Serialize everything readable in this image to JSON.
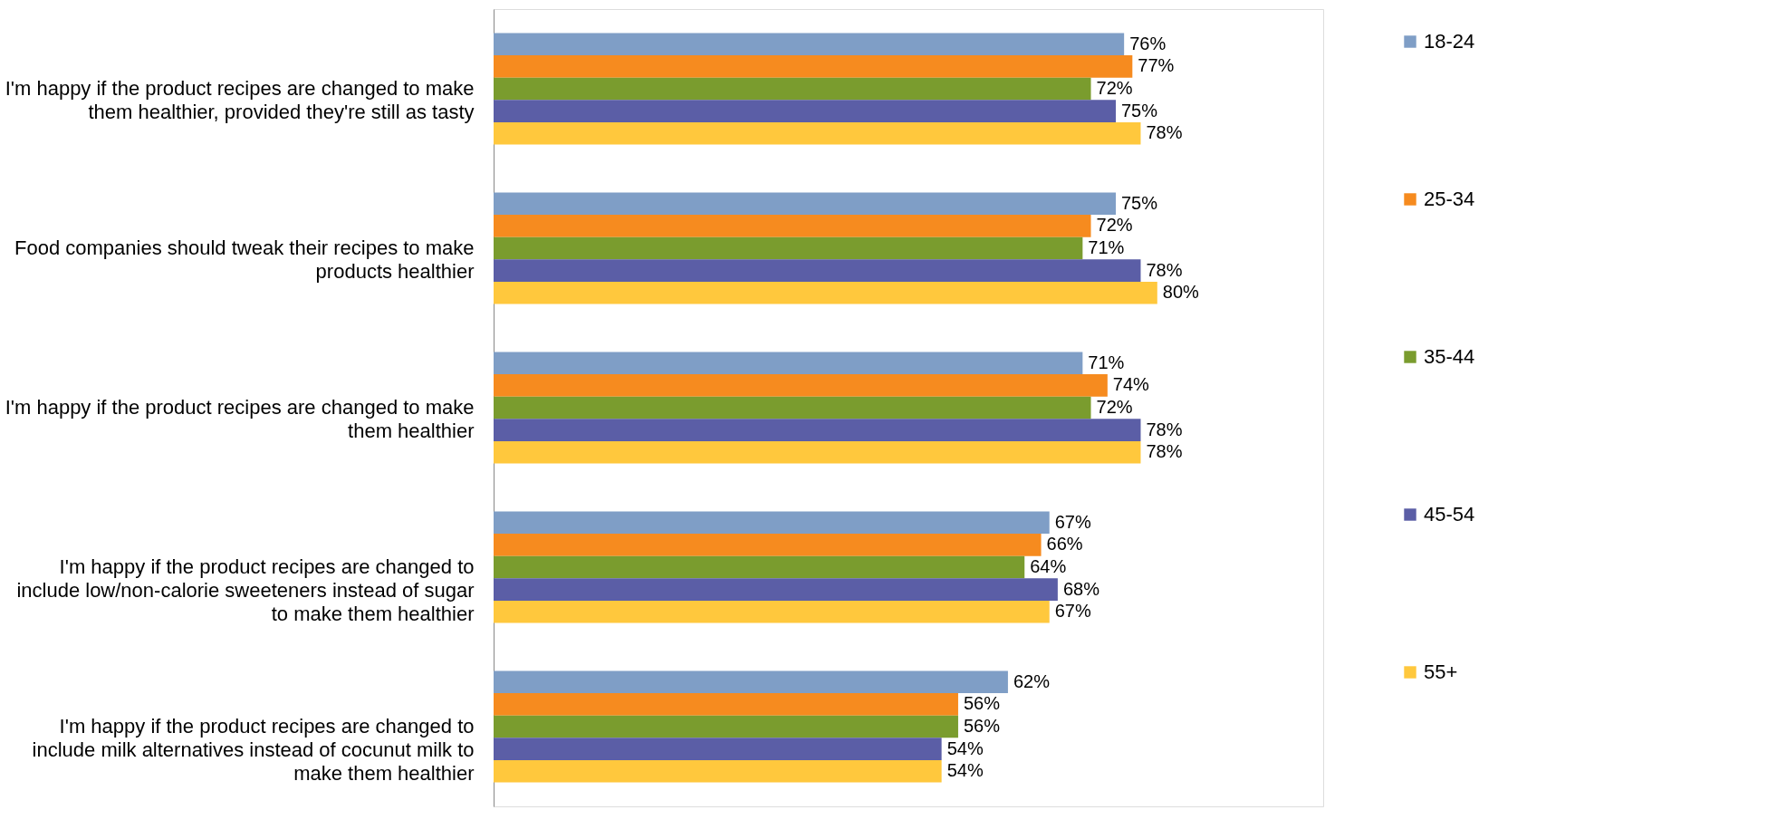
{
  "chart_data": {
    "type": "bar",
    "orientation": "horizontal",
    "categories": [
      "I'm happy if the product recipes are changed to make them healthier, provided they're still as tasty",
      "Food companies should tweak their recipes to make products healthier",
      "I'm happy if the product recipes are changed to make them healthier",
      "I'm happy if the product recipes are changed to include low/non-calorie sweeteners instead of sugar to make them healthier",
      "I'm happy if the product recipes are changed to include milk alternatives instead of cocunut milk to make them healthier"
    ],
    "series": [
      {
        "name": "18-24",
        "color": "#7f9ec6",
        "values": [
          76,
          75,
          71,
          67,
          62
        ],
        "value_labels": [
          "76%",
          "75%",
          "71%",
          "67%",
          "62%"
        ]
      },
      {
        "name": "25-34",
        "color": "#f68b1f",
        "values": [
          77,
          72,
          74,
          66,
          56
        ],
        "value_labels": [
          "77%",
          "72%",
          "74%",
          "66%",
          "56%"
        ]
      },
      {
        "name": "35-44",
        "color": "#7a9c2e",
        "values": [
          72,
          71,
          72,
          64,
          56
        ],
        "value_labels": [
          "72%",
          "71%",
          "72%",
          "64%",
          "56%"
        ]
      },
      {
        "name": "45-54",
        "color": "#5b5ea6",
        "values": [
          75,
          78,
          78,
          68,
          54
        ],
        "value_labels": [
          "75%",
          "78%",
          "78%",
          "68%",
          "54%"
        ]
      },
      {
        "name": "55+",
        "color": "#ffc83d",
        "values": [
          78,
          80,
          78,
          67,
          54
        ],
        "value_labels": [
          "78%",
          "80%",
          "78%",
          "67%",
          "54%"
        ]
      }
    ],
    "xlim": [
      0,
      100
    ],
    "tick_labels": "y",
    "grid": false,
    "legend": "right"
  }
}
